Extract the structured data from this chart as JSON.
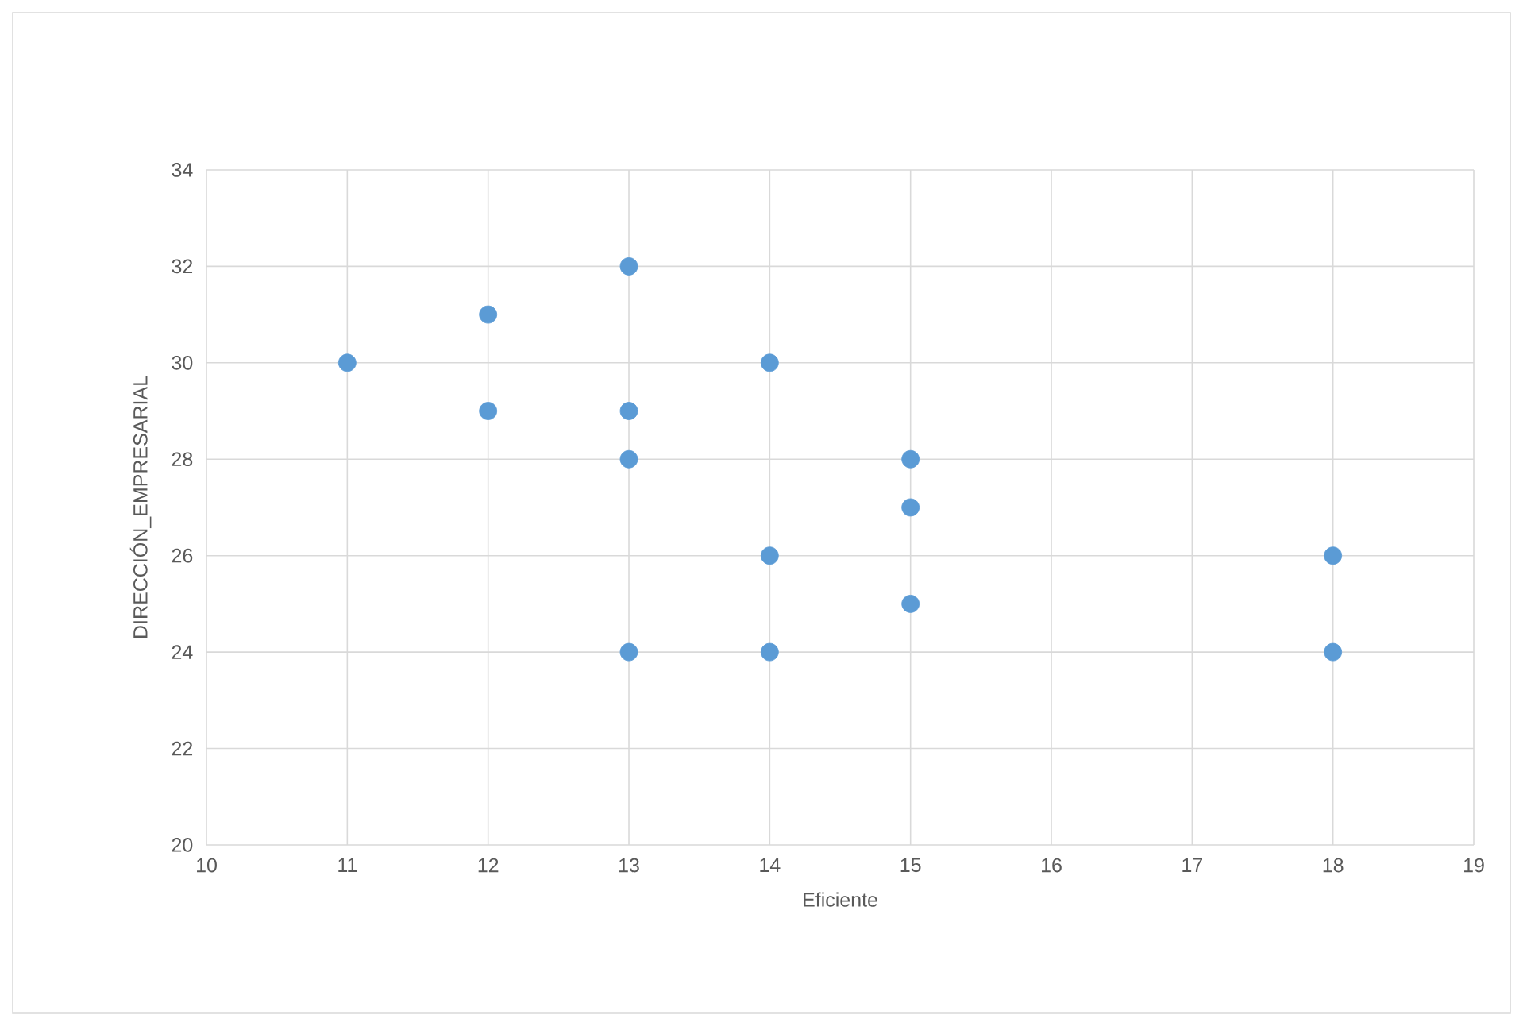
{
  "chart_data": {
    "type": "scatter",
    "xlabel": "Eficiente",
    "ylabel": "DIRECCIÓN_EMPRESARIAL",
    "x": [
      11,
      12,
      12,
      13,
      13,
      13,
      13,
      14,
      14,
      14,
      15,
      15,
      15,
      18,
      18
    ],
    "series": [
      {
        "color": "#5b9bd5",
        "values": [
          30,
          31,
          29,
          32,
          29,
          28,
          24,
          30,
          26,
          24,
          28,
          27,
          25,
          26,
          24
        ]
      }
    ],
    "xlim": [
      10,
      19
    ],
    "ylim": [
      20,
      34
    ],
    "xticks": [
      10,
      11,
      12,
      13,
      14,
      15,
      16,
      17,
      18,
      19
    ],
    "yticks": [
      20,
      22,
      24,
      26,
      28,
      30,
      32,
      34
    ],
    "grid": true,
    "marker": "circle"
  }
}
